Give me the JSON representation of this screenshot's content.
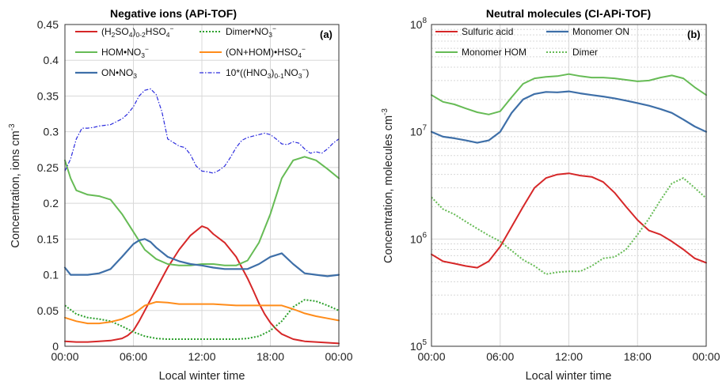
{
  "chart_data": [
    {
      "type": "line",
      "panel_label": "(a)",
      "title": "Negative ions (APi-TOF)",
      "xlabel": "Local winter time",
      "ylabel": "Concentration, ions cm",
      "ylabel_sup": "-3",
      "xlim": [
        0,
        24
      ],
      "ylim": [
        0,
        0.45
      ],
      "x_tick_values": [
        0,
        6,
        12,
        18,
        24
      ],
      "x_tick_labels": [
        "00:00",
        "06:00",
        "12:00",
        "18:00",
        "00:00"
      ],
      "y_tick_values": [
        0,
        0.05,
        0.1,
        0.15,
        0.2,
        0.25,
        0.3,
        0.35,
        0.4,
        0.45
      ],
      "y_tick_labels": [
        "0",
        "0.05",
        "0.1",
        "0.15",
        "0.2",
        "0.25",
        "0.3",
        "0.35",
        "0.4",
        "0.45"
      ],
      "grid": true,
      "legend_placement": "top",
      "series": [
        {
          "name": "(H₂SO₄)₀₋₂HSO₄⁻",
          "legend_parts": [
            [
              "(H",
              ""
            ],
            [
              "2",
              "sub"
            ],
            [
              "SO",
              ""
            ],
            [
              "4",
              "sub"
            ],
            [
              ")",
              ""
            ],
            [
              "0-2",
              "sub"
            ],
            [
              "HSO",
              ""
            ],
            [
              "4",
              "sub"
            ],
            [
              "−",
              "sup"
            ]
          ],
          "color": "#d62728",
          "dash": "solid",
          "width": 2,
          "x": [
            0,
            1,
            2,
            3,
            4,
            5,
            5.5,
            6,
            6.5,
            7,
            7.5,
            8,
            8.5,
            9,
            10,
            11,
            12,
            12.5,
            13,
            14,
            15,
            15.5,
            16,
            16.5,
            17,
            17.5,
            18,
            18.5,
            19,
            20,
            21,
            22,
            23,
            24
          ],
          "values": [
            0.007,
            0.006,
            0.006,
            0.007,
            0.008,
            0.011,
            0.015,
            0.022,
            0.035,
            0.05,
            0.065,
            0.08,
            0.095,
            0.11,
            0.135,
            0.155,
            0.168,
            0.165,
            0.157,
            0.145,
            0.125,
            0.11,
            0.095,
            0.078,
            0.06,
            0.045,
            0.033,
            0.024,
            0.017,
            0.01,
            0.007,
            0.006,
            0.005,
            0.004
          ]
        },
        {
          "name": "Dimer•NO₃⁻",
          "legend_parts": [
            [
              "Dimer•NO",
              ""
            ],
            [
              "3",
              "sub"
            ],
            [
              "−",
              "sup"
            ]
          ],
          "color": "#2ca02c",
          "dash": "dotted",
          "width": 2,
          "x": [
            0,
            1,
            2,
            3,
            4,
            5,
            6,
            7,
            8,
            9,
            10,
            11,
            12,
            13,
            14,
            15,
            16,
            17,
            18,
            19,
            20,
            21,
            22,
            23,
            24
          ],
          "values": [
            0.057,
            0.045,
            0.04,
            0.038,
            0.035,
            0.028,
            0.02,
            0.014,
            0.011,
            0.01,
            0.01,
            0.01,
            0.01,
            0.01,
            0.01,
            0.01,
            0.011,
            0.014,
            0.022,
            0.035,
            0.055,
            0.065,
            0.063,
            0.057,
            0.05
          ]
        },
        {
          "name": "HOM•NO₃⁻",
          "legend_parts": [
            [
              "HOM•NO",
              ""
            ],
            [
              "3",
              "sub"
            ],
            [
              "−",
              "sup"
            ]
          ],
          "color": "#66bb55",
          "dash": "solid",
          "width": 2,
          "x": [
            0,
            0.5,
            1,
            2,
            3,
            4,
            5,
            6,
            7,
            8,
            9,
            10,
            11,
            12,
            13,
            14,
            15,
            16,
            17,
            18,
            19,
            20,
            21,
            22,
            23,
            24
          ],
          "values": [
            0.26,
            0.235,
            0.218,
            0.212,
            0.21,
            0.205,
            0.185,
            0.16,
            0.135,
            0.122,
            0.115,
            0.113,
            0.113,
            0.115,
            0.115,
            0.113,
            0.113,
            0.12,
            0.145,
            0.185,
            0.235,
            0.26,
            0.265,
            0.26,
            0.248,
            0.235
          ]
        },
        {
          "name": "(ON+HOM)•HSO₄⁻",
          "legend_parts": [
            [
              "(ON+HOM)•HSO",
              ""
            ],
            [
              "4",
              "sub"
            ],
            [
              "−",
              "sup"
            ]
          ],
          "color": "#ff8c1a",
          "dash": "solid",
          "width": 2,
          "x": [
            0,
            1,
            2,
            3,
            4,
            5,
            6,
            7,
            8,
            9,
            10,
            11,
            12,
            13,
            14,
            15,
            16,
            17,
            18,
            19,
            20,
            21,
            22,
            23,
            24
          ],
          "values": [
            0.04,
            0.035,
            0.032,
            0.032,
            0.034,
            0.038,
            0.045,
            0.057,
            0.062,
            0.061,
            0.059,
            0.059,
            0.059,
            0.059,
            0.058,
            0.057,
            0.057,
            0.057,
            0.057,
            0.057,
            0.052,
            0.046,
            0.042,
            0.039,
            0.036
          ]
        },
        {
          "name": "ON•NO₃",
          "legend_parts": [
            [
              "ON•NO",
              ""
            ],
            [
              "3",
              "sub"
            ]
          ],
          "color": "#3e6fa8",
          "dash": "solid",
          "width": 2.2,
          "x": [
            0,
            0.5,
            1,
            2,
            3,
            4,
            5,
            6,
            6.5,
            7,
            7.5,
            8,
            9,
            10,
            11,
            12,
            13,
            14,
            15,
            16,
            17,
            18,
            19,
            20,
            21,
            22,
            23,
            24
          ],
          "values": [
            0.11,
            0.1,
            0.1,
            0.1,
            0.102,
            0.108,
            0.125,
            0.143,
            0.148,
            0.15,
            0.146,
            0.138,
            0.125,
            0.119,
            0.115,
            0.113,
            0.11,
            0.108,
            0.108,
            0.108,
            0.115,
            0.125,
            0.13,
            0.115,
            0.102,
            0.1,
            0.098,
            0.1
          ]
        },
        {
          "name": "10*((HNO₃)₀₋₁NO₃⁻)",
          "legend_parts": [
            [
              "10*((HNO",
              ""
            ],
            [
              "3",
              "sub"
            ],
            [
              ")",
              ""
            ],
            [
              "0-1",
              "sub"
            ],
            [
              "NO",
              ""
            ],
            [
              "3",
              "sub"
            ],
            [
              "−",
              "sup"
            ],
            [
              ")",
              ""
            ]
          ],
          "color": "#2b2bdd",
          "dash": "dashdot",
          "width": 1.2,
          "x": [
            0,
            0.5,
            1,
            1.5,
            2,
            2.5,
            3,
            4,
            5,
            5.5,
            6,
            6.5,
            7,
            7.5,
            8,
            8.5,
            9,
            9.5,
            10,
            10.5,
            11,
            11.5,
            12,
            12.5,
            13,
            13.5,
            14,
            14.5,
            15,
            15.5,
            16,
            16.5,
            17,
            17.5,
            18,
            18.5,
            19,
            19.5,
            20,
            20.5,
            21,
            21.5,
            22,
            22.5,
            23,
            23.5,
            24
          ],
          "values": [
            0.245,
            0.262,
            0.29,
            0.305,
            0.305,
            0.306,
            0.308,
            0.31,
            0.318,
            0.325,
            0.335,
            0.35,
            0.358,
            0.36,
            0.352,
            0.328,
            0.29,
            0.285,
            0.28,
            0.278,
            0.268,
            0.252,
            0.245,
            0.244,
            0.242,
            0.246,
            0.252,
            0.264,
            0.278,
            0.288,
            0.292,
            0.294,
            0.296,
            0.298,
            0.296,
            0.29,
            0.283,
            0.282,
            0.286,
            0.284,
            0.276,
            0.27,
            0.272,
            0.27,
            0.276,
            0.284,
            0.29
          ]
        }
      ]
    },
    {
      "type": "line",
      "panel_label": "(b)",
      "title": "Neutral molecules (CI-APi-TOF)",
      "xlabel": "Local winter time",
      "ylabel": "Concentration, molecules cm",
      "ylabel_sup": "-3",
      "xlim": [
        0,
        24
      ],
      "ylim": [
        100000,
        100000000
      ],
      "yscale": "log",
      "x_tick_values": [
        0,
        6,
        12,
        18,
        24
      ],
      "x_tick_labels": [
        "00:00",
        "06:00",
        "12:00",
        "18:00",
        "00:00"
      ],
      "y_tick_values": [
        100000,
        1000000,
        10000000,
        100000000
      ],
      "y_tick_labels": [
        [
          "10",
          "5"
        ],
        [
          "10",
          "6"
        ],
        [
          "10",
          "7"
        ],
        [
          "10",
          "8"
        ]
      ],
      "grid": true,
      "legend_placement": "top",
      "series": [
        {
          "name": "Sulfuric acid",
          "legend_parts": [
            [
              "Sulfuric acid",
              ""
            ]
          ],
          "color": "#d62728",
          "dash": "solid",
          "width": 2,
          "x": [
            0,
            1,
            2,
            3,
            4,
            5,
            6,
            7,
            8,
            9,
            10,
            11,
            12,
            13,
            14,
            15,
            16,
            17,
            18,
            19,
            20,
            21,
            22,
            23,
            24
          ],
          "values": [
            720000,
            620000,
            590000,
            560000,
            540000,
            620000,
            850000,
            1300000,
            2000000,
            3000000,
            3700000,
            4000000,
            4100000,
            3900000,
            3800000,
            3400000,
            2700000,
            2000000,
            1500000,
            1200000,
            1100000,
            950000,
            800000,
            660000,
            600000
          ]
        },
        {
          "name": "Monomer ON",
          "legend_parts": [
            [
              "Monomer ON",
              ""
            ]
          ],
          "color": "#3e6fa8",
          "dash": "solid",
          "width": 2.2,
          "x": [
            0,
            1,
            2,
            3,
            4,
            5,
            6,
            7,
            8,
            9,
            10,
            11,
            12,
            13,
            14,
            15,
            16,
            17,
            18,
            19,
            20,
            21,
            22,
            23,
            24
          ],
          "values": [
            10000000,
            9000000,
            8700000,
            8300000,
            7900000,
            8300000,
            10000000,
            15000000,
            20000000,
            22500000,
            23500000,
            23300000,
            23800000,
            22800000,
            22000000,
            21300000,
            20500000,
            19500000,
            18500000,
            17500000,
            16300000,
            15000000,
            13000000,
            11200000,
            10000000
          ]
        },
        {
          "name": "Monomer HOM",
          "legend_parts": [
            [
              "Monomer HOM",
              ""
            ]
          ],
          "color": "#66bb55",
          "dash": "solid",
          "width": 2,
          "x": [
            0,
            1,
            2,
            3,
            4,
            5,
            6,
            7,
            8,
            9,
            10,
            11,
            12,
            13,
            14,
            15,
            16,
            17,
            18,
            19,
            20,
            21,
            22,
            23,
            24
          ],
          "values": [
            22000000,
            19000000,
            18000000,
            16500000,
            15200000,
            14500000,
            15500000,
            21000000,
            28000000,
            31500000,
            32500000,
            33000000,
            34500000,
            33000000,
            32000000,
            32000000,
            31500000,
            30500000,
            29500000,
            30000000,
            32000000,
            33500000,
            31500000,
            26000000,
            22000000
          ]
        },
        {
          "name": "Dimer",
          "legend_parts": [
            [
              "Dimer",
              ""
            ]
          ],
          "color": "#66bb55",
          "dash": "dotted",
          "width": 2,
          "x": [
            0,
            1,
            2,
            3,
            4,
            5,
            6,
            7,
            8,
            9,
            10,
            11,
            12,
            13,
            14,
            15,
            16,
            17,
            18,
            19,
            20,
            21,
            22,
            23,
            24
          ],
          "values": [
            2450000,
            1900000,
            1700000,
            1450000,
            1250000,
            1080000,
            950000,
            780000,
            640000,
            560000,
            470000,
            490000,
            500000,
            500000,
            560000,
            660000,
            680000,
            800000,
            1100000,
            1550000,
            2300000,
            3300000,
            3700000,
            3000000,
            2400000
          ]
        }
      ]
    }
  ]
}
